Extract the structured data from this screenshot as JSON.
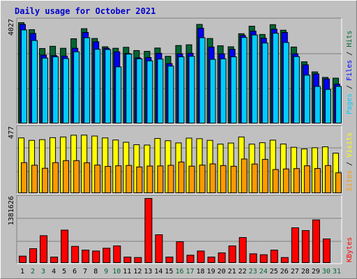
{
  "title": "Daily usage for October 2021",
  "colors": {
    "hits": "#006633",
    "files": "#0000ff",
    "pages": "#00ccff",
    "visits": "#ffff00",
    "sites": "#ff9900",
    "kbytes": "#ff0000",
    "weekend_label": "#006633",
    "weekday_label": "#000000"
  },
  "chart_data": [
    {
      "type": "bar",
      "panel": "hits-files-pages",
      "ymax_label": "4027",
      "ylim": [
        0,
        4027
      ],
      "legend": {
        "pages": "Pages",
        "files": "Files",
        "hits": "Hits",
        "sep": " / "
      },
      "categories": [
        "1",
        "2",
        "3",
        "4",
        "5",
        "6",
        "7",
        "8",
        "9",
        "10",
        "11",
        "12",
        "13",
        "14",
        "15",
        "16",
        "17",
        "18",
        "19",
        "20",
        "21",
        "22",
        "23",
        "24",
        "25",
        "26",
        "27",
        "28",
        "29",
        "30",
        "31"
      ],
      "series": [
        {
          "name": "Hits",
          "values": [
            4000,
            3720,
            2970,
            3060,
            2980,
            3360,
            3760,
            3370,
            3040,
            2980,
            3020,
            2890,
            2860,
            2990,
            2660,
            3090,
            3120,
            3930,
            3370,
            3080,
            3040,
            3560,
            3860,
            3530,
            3920,
            3700,
            3030,
            2440,
            2040,
            1820,
            1790
          ]
        },
        {
          "name": "Files",
          "values": [
            3930,
            3570,
            2710,
            2690,
            2670,
            2980,
            3610,
            3240,
            2980,
            2840,
            2770,
            2600,
            2610,
            2780,
            2370,
            2760,
            2780,
            3780,
            3030,
            2760,
            2940,
            3490,
            3660,
            3380,
            3740,
            3610,
            2760,
            2320,
            1960,
            1760,
            1550
          ]
        },
        {
          "name": "Pages",
          "values": [
            3710,
            3290,
            2590,
            2640,
            2570,
            2840,
            3400,
            2940,
            2930,
            2240,
            2750,
            2560,
            2480,
            2550,
            2270,
            2640,
            2660,
            3400,
            2540,
            2560,
            2640,
            3410,
            3510,
            3190,
            3580,
            3210,
            2650,
            1910,
            1460,
            1340,
            1460
          ]
        }
      ]
    },
    {
      "type": "bar",
      "panel": "visits-sites",
      "ymax_label": "477",
      "ylim": [
        0,
        477
      ],
      "legend": {
        "sites": "Sites",
        "visits": "Visits",
        "sep": " / "
      },
      "categories": [
        "1",
        "2",
        "3",
        "4",
        "5",
        "6",
        "7",
        "8",
        "9",
        "10",
        "11",
        "12",
        "13",
        "14",
        "15",
        "16",
        "17",
        "18",
        "19",
        "20",
        "21",
        "22",
        "23",
        "24",
        "25",
        "26",
        "27",
        "28",
        "29",
        "30",
        "31"
      ],
      "series": [
        {
          "name": "Visits",
          "values": [
            469,
            448,
            454,
            471,
            477,
            492,
            493,
            485,
            469,
            451,
            432,
            411,
            408,
            464,
            445,
            426,
            467,
            462,
            448,
            416,
            425,
            477,
            416,
            428,
            450,
            417,
            389,
            375,
            385,
            393,
            339
          ]
        },
        {
          "name": "Sites",
          "values": [
            258,
            236,
            210,
            258,
            275,
            275,
            257,
            237,
            226,
            231,
            234,
            221,
            229,
            230,
            235,
            263,
            228,
            237,
            247,
            233,
            227,
            289,
            246,
            286,
            199,
            204,
            207,
            231,
            208,
            233,
            171
          ]
        }
      ]
    },
    {
      "type": "bar",
      "panel": "kbytes",
      "ymax_label": "1381626",
      "ylim": [
        0,
        1381626
      ],
      "legend": {
        "kbytes": "KBytes"
      },
      "categories": [
        "1",
        "2",
        "3",
        "4",
        "5",
        "6",
        "7",
        "8",
        "9",
        "10",
        "11",
        "12",
        "13",
        "14",
        "15",
        "16",
        "17",
        "18",
        "19",
        "20",
        "21",
        "22",
        "23",
        "24",
        "25",
        "26",
        "27",
        "28",
        "29",
        "30",
        "31"
      ],
      "series": [
        {
          "name": "KBytes",
          "values": [
            140000,
            300000,
            580000,
            120000,
            700000,
            350000,
            270000,
            250000,
            310000,
            360000,
            120000,
            110000,
            1381626,
            600000,
            120000,
            450000,
            160000,
            250000,
            120000,
            210000,
            360000,
            540000,
            190000,
            170000,
            270000,
            110000,
            750000,
            690000,
            920000,
            510000,
            0
          ]
        }
      ]
    }
  ],
  "weekend_days": [
    "2",
    "3",
    "9",
    "10",
    "16",
    "17",
    "23",
    "24",
    "30",
    "31"
  ]
}
